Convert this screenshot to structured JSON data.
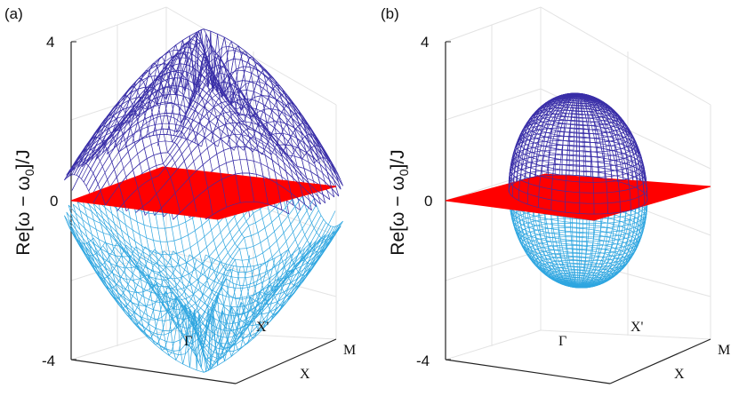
{
  "chart_data": [
    {
      "type": "surface3d",
      "panel_label": "(a)",
      "ylabel": "Re[ω − ω",
      "ylabel_sub": "0",
      "ylabel_tail": "]/J",
      "zlim": [
        -4,
        4
      ],
      "z_ticks": [
        "4",
        "0",
        "-4"
      ],
      "k_labels": [
        "Γ",
        "X'",
        "M",
        "X"
      ],
      "grid": true,
      "colors": {
        "upper_band": "#3a2fa8",
        "lower_band": "#2fa6e0",
        "flat_band": "#ff0000"
      },
      "upper_band_max": 3.2,
      "lower_band_min": -3.2,
      "flat_band_value": 0
    },
    {
      "type": "surface3d",
      "panel_label": "(b)",
      "ylabel": "Re[ω − ω",
      "ylabel_sub": "0",
      "ylabel_tail": "]/J",
      "zlim": [
        -4,
        4
      ],
      "z_ticks": [
        "4",
        "0",
        "-4"
      ],
      "k_labels": [
        "Γ",
        "X'",
        "M",
        "X"
      ],
      "grid": true,
      "colors": {
        "upper_band": "#3a2fa8",
        "lower_band": "#2fa6e0",
        "flat_band": "#ff0000"
      },
      "upper_band_max": 2.5,
      "lower_band_min": -2.3,
      "flat_band_value": 0
    }
  ]
}
